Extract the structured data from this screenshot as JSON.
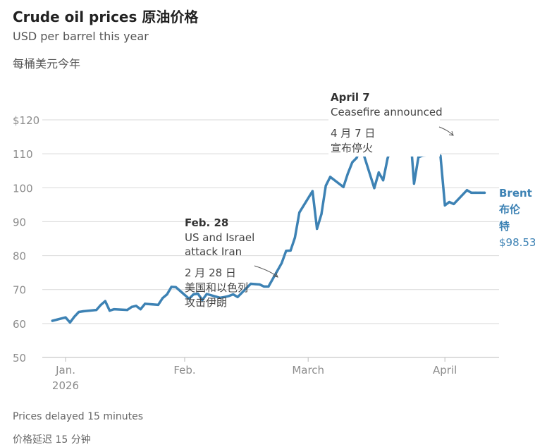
{
  "title": "Crude oil prices  原油价格",
  "subtitle_en": "USD per barrel this year",
  "subtitle_zh": "每桶美元今年",
  "footer_en": "Prices delayed 15 minutes",
  "footer_zh": "价格延迟 15 分钟",
  "chart_data": {
    "type": "line",
    "ylim": [
      50,
      120
    ],
    "y_ticks": [
      {
        "value": 120,
        "label": "$120"
      },
      {
        "value": 110,
        "label": "110"
      },
      {
        "value": 100,
        "label": "100"
      },
      {
        "value": 90,
        "label": "90"
      },
      {
        "value": 80,
        "label": "80"
      },
      {
        "value": 70,
        "label": "70"
      },
      {
        "value": 60,
        "label": "60"
      },
      {
        "value": 50,
        "label": "50"
      }
    ],
    "x_ticks": [
      {
        "date": "2026-01-05",
        "label": "Jan.",
        "label2": "2026"
      },
      {
        "date": "2026-02-01",
        "label": "Feb.",
        "label2": ""
      },
      {
        "date": "2026-03-01",
        "label": "March",
        "label2": ""
      },
      {
        "date": "2026-04-01",
        "label": "April",
        "label2": ""
      }
    ],
    "xlim": [
      "2026-01-01",
      "2026-04-12"
    ],
    "grid": true,
    "series": [
      {
        "name": "Brent",
        "name_zh": "布伦特",
        "last_label": "$98.53",
        "color": "#3d82b4",
        "x": [
          "2026-01-02",
          "2026-01-05",
          "2026-01-06",
          "2026-01-07",
          "2026-01-08",
          "2026-01-09",
          "2026-01-12",
          "2026-01-13",
          "2026-01-14",
          "2026-01-15",
          "2026-01-16",
          "2026-01-19",
          "2026-01-20",
          "2026-01-21",
          "2026-01-22",
          "2026-01-23",
          "2026-01-26",
          "2026-01-27",
          "2026-01-28",
          "2026-01-29",
          "2026-01-30",
          "2026-02-02",
          "2026-02-03",
          "2026-02-04",
          "2026-02-05",
          "2026-02-06",
          "2026-02-09",
          "2026-02-10",
          "2026-02-11",
          "2026-02-12",
          "2026-02-13",
          "2026-02-16",
          "2026-02-17",
          "2026-02-18",
          "2026-02-19",
          "2026-02-20",
          "2026-02-23",
          "2026-02-24",
          "2026-02-25",
          "2026-02-26",
          "2026-02-27",
          "2026-03-02",
          "2026-03-03",
          "2026-03-04",
          "2026-03-05",
          "2026-03-06",
          "2026-03-09",
          "2026-03-10",
          "2026-03-11",
          "2026-03-12",
          "2026-03-13",
          "2026-03-16",
          "2026-03-17",
          "2026-03-18",
          "2026-03-19",
          "2026-03-20",
          "2026-03-23",
          "2026-03-24",
          "2026-03-25",
          "2026-03-26",
          "2026-03-27",
          "2026-03-30",
          "2026-03-31",
          "2026-04-01",
          "2026-04-02",
          "2026-04-03",
          "2026-04-06",
          "2026-04-07",
          "2026-04-08",
          "2026-04-09",
          "2026-04-10"
        ],
        "values": [
          60.8,
          61.8,
          60.3,
          62.0,
          63.4,
          63.6,
          64.0,
          65.5,
          66.6,
          63.8,
          64.2,
          64.0,
          64.9,
          65.2,
          64.2,
          65.8,
          65.5,
          67.5,
          68.6,
          70.8,
          70.7,
          67.3,
          68.6,
          68.8,
          66.9,
          68.7,
          67.6,
          67.8,
          68.1,
          68.6,
          67.8,
          71.7,
          71.6,
          71.5,
          70.9,
          70.9,
          77.8,
          81.4,
          81.5,
          85.3,
          92.7,
          99.0,
          87.9,
          92.2,
          100.6,
          103.2,
          100.2,
          104.2,
          107.5,
          108.8,
          112.2,
          99.9,
          104.5,
          102.2,
          108.6,
          112.6,
          112.8,
          118.5,
          101.2,
          109.0,
          109.5,
          109.8,
          109.4,
          94.8,
          95.8,
          95.2,
          99.3,
          98.53,
          98.53,
          98.53,
          98.53
        ]
      }
    ],
    "annotations": [
      {
        "date": "2026-02-28",
        "head": "Feb. 28",
        "lines": [
          "US and Israel",
          "attack Iran"
        ],
        "lines_zh": [
          "2 月 28 日",
          "美国和以色列",
          "攻击伊朗"
        ]
      },
      {
        "date": "2026-04-07",
        "head": "April 7",
        "lines": [
          "Ceasefire announced"
        ],
        "lines_zh": [
          "4 月 7 日",
          "宣布停火"
        ]
      }
    ]
  }
}
